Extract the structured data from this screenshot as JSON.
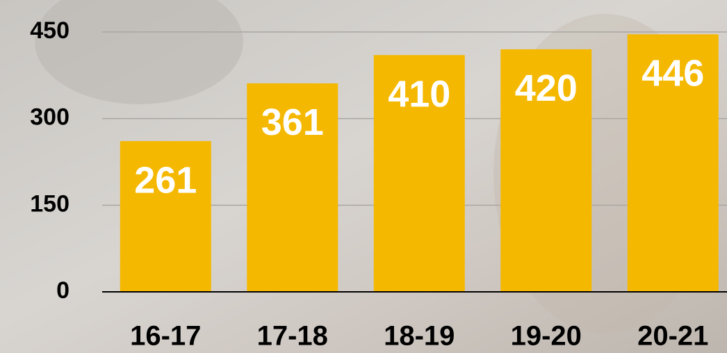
{
  "chart_data": {
    "type": "bar",
    "categories": [
      "16-17",
      "17-18",
      "18-19",
      "19-20",
      "20-21"
    ],
    "values": [
      261,
      361,
      410,
      420,
      446
    ],
    "color": "#f5b800",
    "ylim": [
      0,
      450
    ],
    "yticks": [
      0,
      150,
      300,
      450
    ],
    "grid": true
  }
}
